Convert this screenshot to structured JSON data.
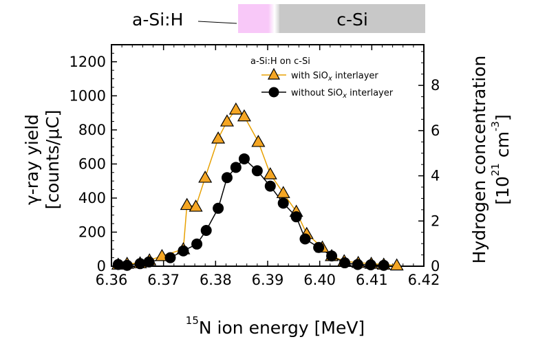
{
  "structure_bar": {
    "left_label": "a-Si:H",
    "right_label": "c-Si",
    "colors": {
      "a_si_h": "#f8c8f8",
      "c_si": "#c8c8c8"
    }
  },
  "chart_data": {
    "type": "line",
    "xlabel": {
      "superscript": "15",
      "text": "N ion energy [MeV]"
    },
    "ylabel": {
      "line1": "γ-ray yield",
      "line2": "[counts/μC]"
    },
    "y2label": {
      "line1": "Hydrogen concentration",
      "open": "[10",
      "sup1": "21",
      "mid": " cm",
      "sup2": "-3",
      "close": "]"
    },
    "xlim": [
      6.36,
      6.42
    ],
    "ylim": [
      0,
      1300
    ],
    "y2lim": [
      0,
      9.8
    ],
    "x_ticks": [
      "6.36",
      "6.37",
      "6.38",
      "6.39",
      "6.40",
      "6.41",
      "6.42"
    ],
    "y_ticks": [
      "0",
      "200",
      "400",
      "600",
      "800",
      "1000",
      "1200"
    ],
    "y2_ticks": [
      "0",
      "2",
      "4",
      "6",
      "8"
    ],
    "grid": false,
    "legend": {
      "title": "a-Si:H on c-Si",
      "placement": "top-right",
      "entries": [
        {
          "base": "with SiO",
          "sub": "x",
          "rest": " interlayer"
        },
        {
          "base": "without SiO",
          "sub": "x",
          "rest": " interlayer"
        }
      ]
    },
    "series": [
      {
        "marker": "triangle",
        "color": "#f5a623",
        "line_color": "#e8a000",
        "x": [
          6.3613,
          6.363,
          6.3655,
          6.3673,
          6.3697,
          6.3738,
          6.3745,
          6.3762,
          6.378,
          6.3805,
          6.3822,
          6.3839,
          6.3855,
          6.3882,
          6.3905,
          6.393,
          6.3955,
          6.3975,
          6.4005,
          6.4023,
          6.4047,
          6.4074,
          6.4099,
          6.4123,
          6.4148
        ],
        "values": [
          10,
          15,
          18,
          35,
          60,
          100,
          360,
          350,
          520,
          750,
          850,
          920,
          880,
          730,
          540,
          430,
          320,
          190,
          110,
          60,
          30,
          20,
          15,
          10,
          5
        ]
      },
      {
        "marker": "circle",
        "color": "#000000",
        "line_color": "#000000",
        "x": [
          6.3613,
          6.363,
          6.3655,
          6.3672,
          6.3713,
          6.3738,
          6.3764,
          6.3782,
          6.3805,
          6.3822,
          6.3839,
          6.3855,
          6.388,
          6.3905,
          6.393,
          6.3955,
          6.3972,
          6.3998,
          6.4023,
          6.4048,
          6.4073,
          6.4098,
          6.4123
        ],
        "values": [
          10,
          5,
          15,
          25,
          50,
          90,
          130,
          210,
          340,
          520,
          580,
          630,
          560,
          470,
          370,
          290,
          160,
          110,
          60,
          20,
          10,
          8,
          5
        ]
      }
    ]
  }
}
